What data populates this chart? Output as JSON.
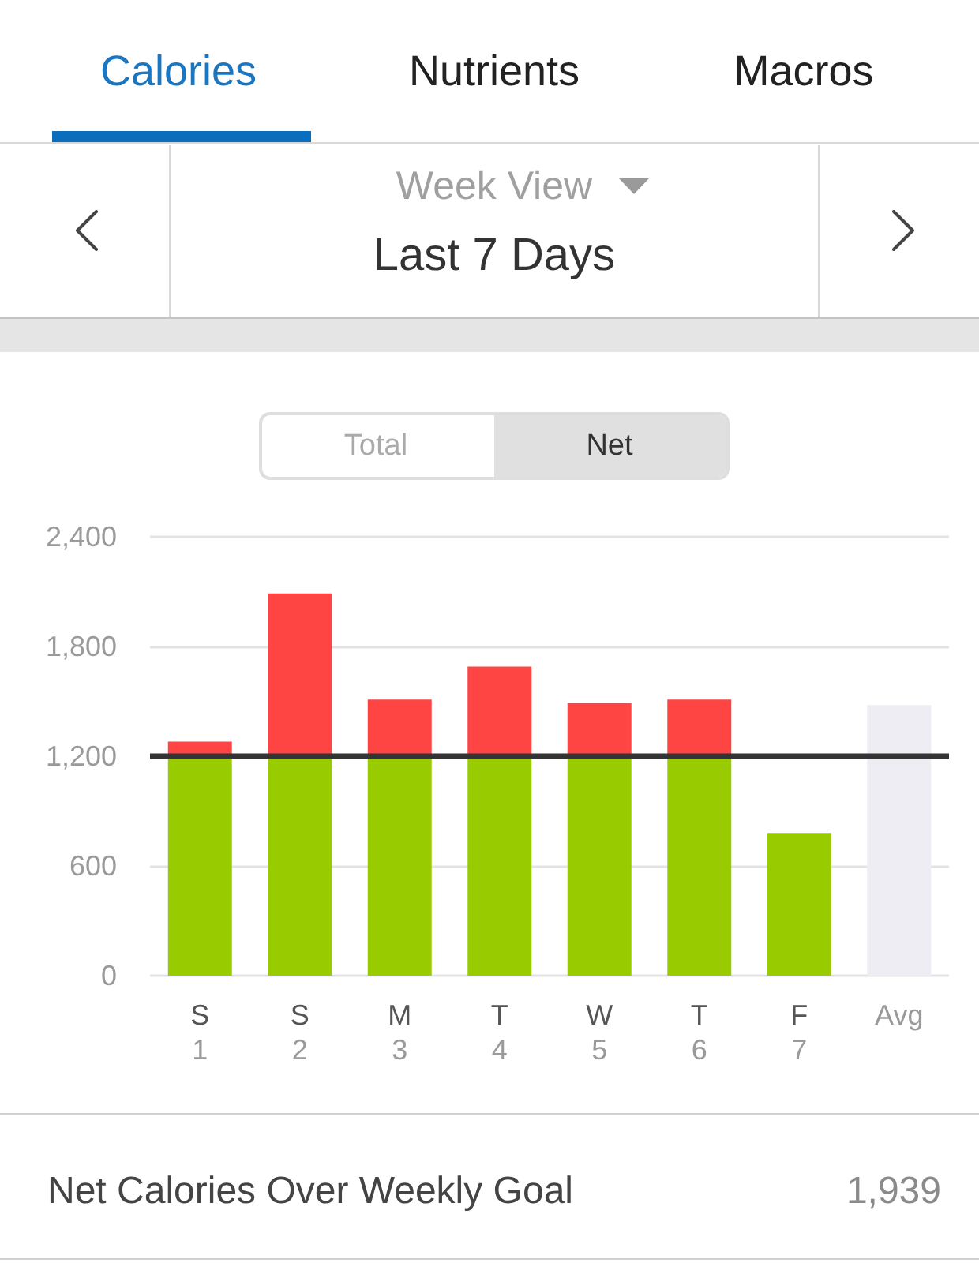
{
  "chart_data": {
    "type": "bar",
    "title": "Last 7 Days",
    "subtitle": "Week View",
    "annotations": [
      "Calories",
      "Nutrients",
      "Macros",
      "Total",
      "Net",
      "Net Calories Over Weekly Goal",
      "1,939"
    ],
    "categories": [
      "S\n1",
      "S\n2",
      "M\n3",
      "T\n4",
      "W\n5",
      "T\n6",
      "F\n7",
      "Avg"
    ],
    "series": [
      {
        "color": "#99cc00",
        "values": [
          1200,
          1200,
          1200,
          1200,
          1200,
          1200,
          780,
          null
        ]
      },
      {
        "color": "#ff4444",
        "values": [
          80,
          890,
          310,
          490,
          290,
          310,
          null,
          null
        ]
      },
      {
        "color": "#ededf3",
        "values": [
          null,
          null,
          null,
          null,
          null,
          null,
          null,
          1480
        ]
      }
    ],
    "stacked": true,
    "ylim": [
      0,
      2400
    ],
    "yticks": [
      0,
      600,
      {
        "value": 1200,
        "label": "1,200"
      },
      {
        "value": 1800,
        "label": "1,800"
      },
      {
        "value": 2400,
        "label": "2,400"
      }
    ],
    "grid": "y",
    "ref_lines": [
      {
        "axis": "y",
        "value": 1200,
        "color": "#333333"
      }
    ]
  }
}
